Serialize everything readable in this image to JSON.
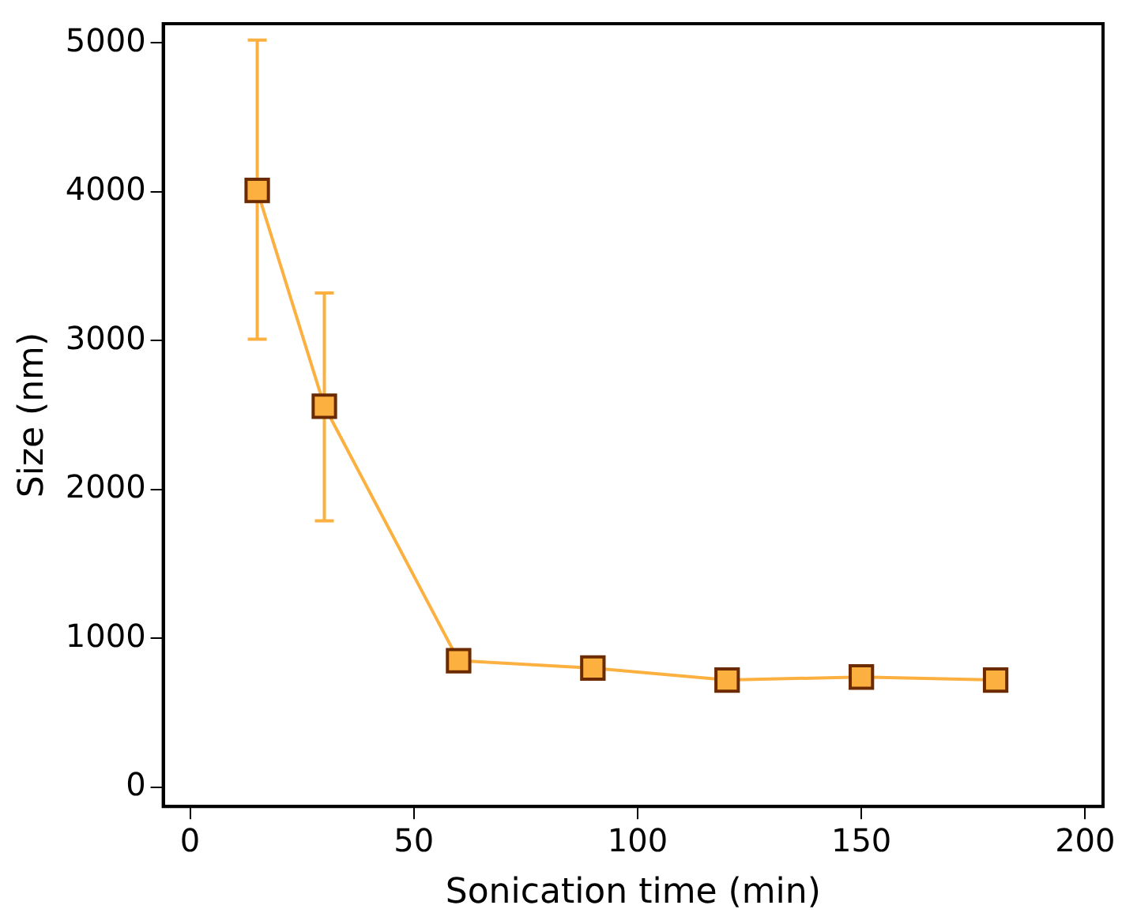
{
  "chart_data": {
    "type": "line",
    "xlabel": "Sonication time (min)",
    "ylabel": "Size (nm)",
    "x": [
      15,
      30,
      60,
      90,
      120,
      150,
      180
    ],
    "series": [
      {
        "color": "#fbb040",
        "values": [
          4010,
          2560,
          850,
          800,
          720,
          740,
          720
        ],
        "errors": [
          [
            3010,
            5020
          ],
          [
            1790,
            3320
          ],
          null,
          null,
          null,
          null,
          null
        ]
      }
    ],
    "xlim": [
      -6,
      204
    ],
    "xticks": [
      0,
      50,
      100,
      150,
      200
    ],
    "ylim": [
      -130,
      5130
    ],
    "yticks": [
      0,
      1000,
      2000,
      3000,
      4000,
      5000
    ],
    "marker": "square",
    "line_style": "solid",
    "grid": false,
    "legend": false
  }
}
